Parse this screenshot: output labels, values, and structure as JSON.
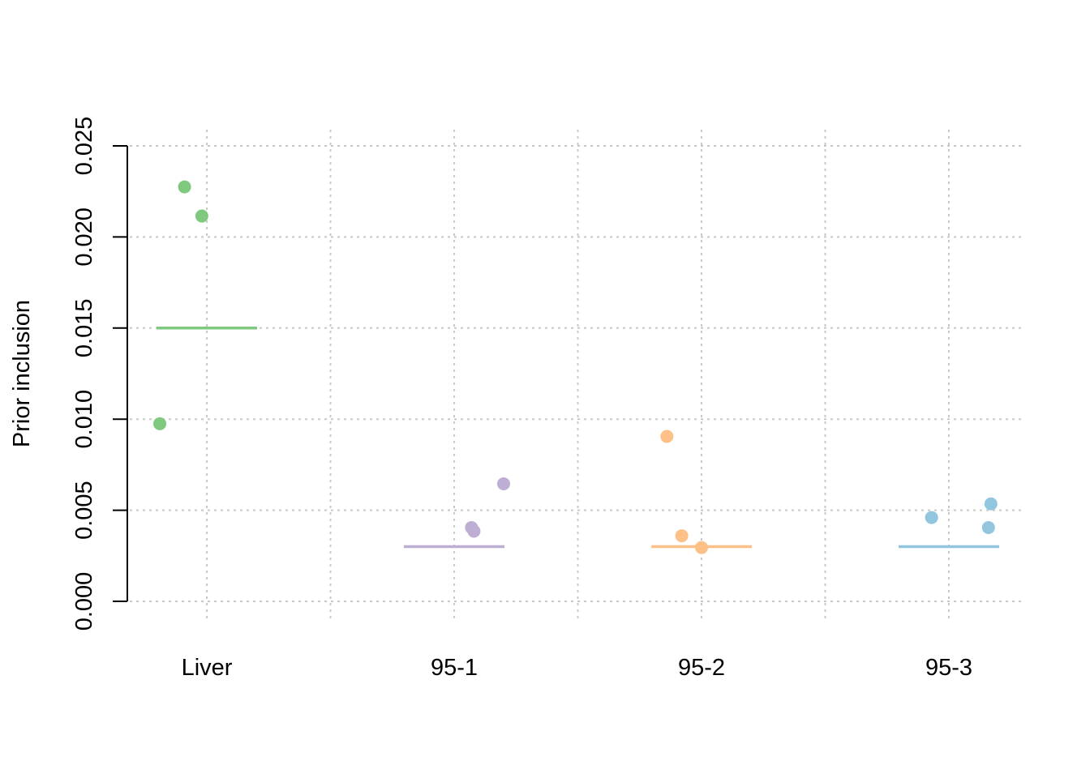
{
  "chart_data": {
    "type": "scatter",
    "title": "",
    "xlabel": "",
    "ylabel": "Prior inclusion",
    "categories": [
      "Liver",
      "95-1",
      "95-2",
      "95-3"
    ],
    "ylim": [
      0,
      0.025
    ],
    "yticks": [
      "0.000",
      "0.005",
      "0.010",
      "0.015",
      "0.020",
      "0.025"
    ],
    "grid": true,
    "series": [
      {
        "category": "Liver",
        "color": "#7fc97f",
        "reference_line": 0.015,
        "points": [
          {
            "x_offset": -0.19,
            "y": 0.00975
          },
          {
            "x_offset": -0.09,
            "y": 0.02275
          },
          {
            "x_offset": -0.02,
            "y": 0.02115
          }
        ]
      },
      {
        "category": "95-1",
        "color": "#beaed4",
        "reference_line": 0.003,
        "points": [
          {
            "x_offset": 0.07,
            "y": 0.00405
          },
          {
            "x_offset": 0.08,
            "y": 0.00385
          },
          {
            "x_offset": 0.2,
            "y": 0.00645
          }
        ]
      },
      {
        "category": "95-2",
        "color": "#fdc086",
        "reference_line": 0.003,
        "points": [
          {
            "x_offset": -0.14,
            "y": 0.00905
          },
          {
            "x_offset": -0.08,
            "y": 0.0036
          },
          {
            "x_offset": 0.0,
            "y": 0.00295
          }
        ]
      },
      {
        "category": "95-3",
        "color": "#92c5de",
        "reference_line": 0.003,
        "points": [
          {
            "x_offset": -0.07,
            "y": 0.0046
          },
          {
            "x_offset": 0.16,
            "y": 0.00405
          },
          {
            "x_offset": 0.17,
            "y": 0.00535
          }
        ]
      }
    ]
  }
}
